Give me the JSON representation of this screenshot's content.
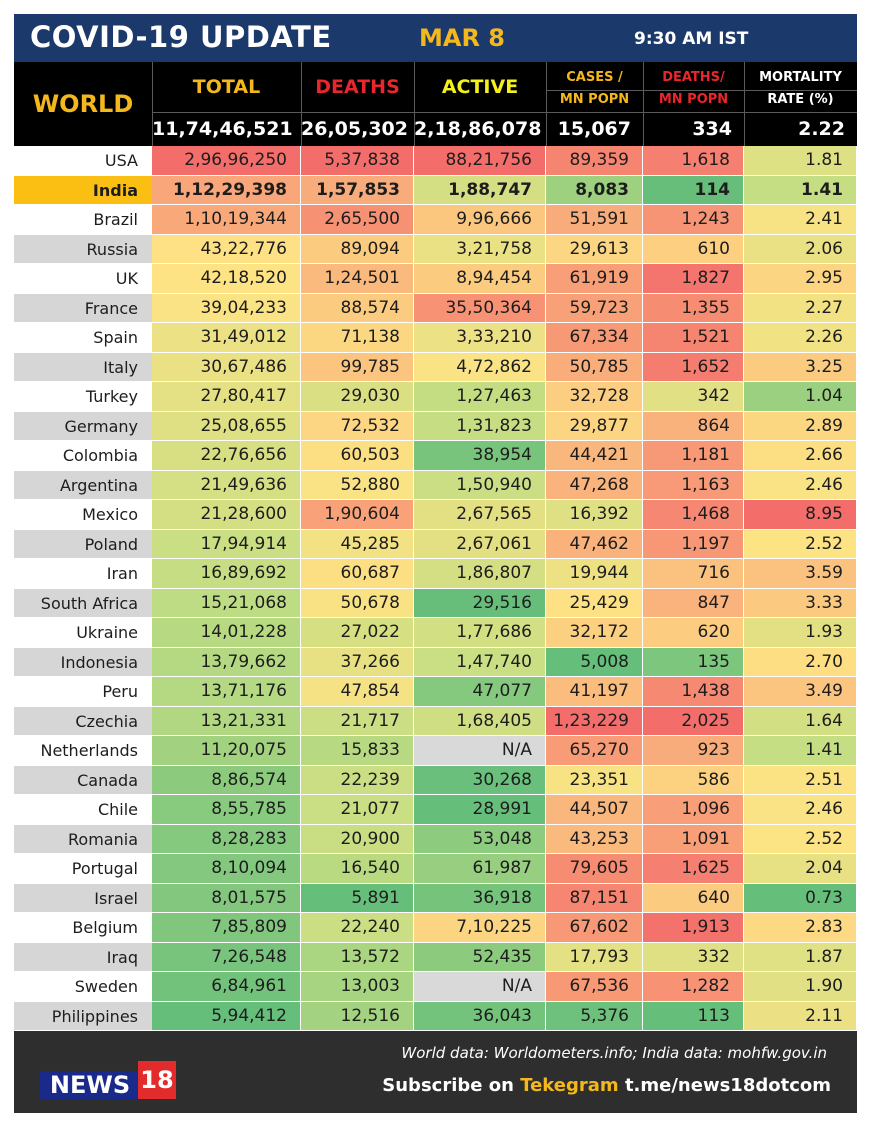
{
  "header": {
    "title": "COVID-19 UPDATE",
    "date": "MAR 8",
    "time": "9:30 AM IST"
  },
  "table": {
    "region_label": "WORLD",
    "columns": {
      "total": "TOTAL",
      "deaths": "DEATHS",
      "active": "ACTIVE",
      "cases_line1": "CASES /",
      "cases_line2": "MN POPN",
      "deaths_line1": "DEATHS/",
      "deaths_line2": "MN POPN",
      "mortality_line1": "MORTALITY",
      "mortality_line2": "RATE (%)"
    },
    "world_totals": {
      "total": "11,74,46,521",
      "deaths": "26,05,302",
      "active": "2,18,86,078",
      "cases_mn": "15,067",
      "deaths_mn": "334",
      "mortality": "2.22"
    },
    "rows": [
      {
        "country": "USA",
        "total": "2,96,96,250",
        "deaths": "5,37,838",
        "active": "88,21,756",
        "cases_mn": "89,359",
        "deaths_mn": "1,618",
        "mortality": "1.81"
      },
      {
        "country": "India",
        "total": "1,12,29,398",
        "deaths": "1,57,853",
        "active": "1,88,747",
        "cases_mn": "8,083",
        "deaths_mn": "114",
        "mortality": "1.41"
      },
      {
        "country": "Brazil",
        "total": "1,10,19,344",
        "deaths": "2,65,500",
        "active": "9,96,666",
        "cases_mn": "51,591",
        "deaths_mn": "1,243",
        "mortality": "2.41"
      },
      {
        "country": "Russia",
        "total": "43,22,776",
        "deaths": "89,094",
        "active": "3,21,758",
        "cases_mn": "29,613",
        "deaths_mn": "610",
        "mortality": "2.06"
      },
      {
        "country": "UK",
        "total": "42,18,520",
        "deaths": "1,24,501",
        "active": "8,94,454",
        "cases_mn": "61,919",
        "deaths_mn": "1,827",
        "mortality": "2.95"
      },
      {
        "country": "France",
        "total": "39,04,233",
        "deaths": "88,574",
        "active": "35,50,364",
        "cases_mn": "59,723",
        "deaths_mn": "1,355",
        "mortality": "2.27"
      },
      {
        "country": "Spain",
        "total": "31,49,012",
        "deaths": "71,138",
        "active": "3,33,210",
        "cases_mn": "67,334",
        "deaths_mn": "1,521",
        "mortality": "2.26"
      },
      {
        "country": "Italy",
        "total": "30,67,486",
        "deaths": "99,785",
        "active": "4,72,862",
        "cases_mn": "50,785",
        "deaths_mn": "1,652",
        "mortality": "3.25"
      },
      {
        "country": "Turkey",
        "total": "27,80,417",
        "deaths": "29,030",
        "active": "1,27,463",
        "cases_mn": "32,728",
        "deaths_mn": "342",
        "mortality": "1.04"
      },
      {
        "country": "Germany",
        "total": "25,08,655",
        "deaths": "72,532",
        "active": "1,31,823",
        "cases_mn": "29,877",
        "deaths_mn": "864",
        "mortality": "2.89"
      },
      {
        "country": "Colombia",
        "total": "22,76,656",
        "deaths": "60,503",
        "active": "38,954",
        "cases_mn": "44,421",
        "deaths_mn": "1,181",
        "mortality": "2.66"
      },
      {
        "country": "Argentina",
        "total": "21,49,636",
        "deaths": "52,880",
        "active": "1,50,940",
        "cases_mn": "47,268",
        "deaths_mn": "1,163",
        "mortality": "2.46"
      },
      {
        "country": "Mexico",
        "total": "21,28,600",
        "deaths": "1,90,604",
        "active": "2,67,565",
        "cases_mn": "16,392",
        "deaths_mn": "1,468",
        "mortality": "8.95"
      },
      {
        "country": "Poland",
        "total": "17,94,914",
        "deaths": "45,285",
        "active": "2,67,061",
        "cases_mn": "47,462",
        "deaths_mn": "1,197",
        "mortality": "2.52"
      },
      {
        "country": "Iran",
        "total": "16,89,692",
        "deaths": "60,687",
        "active": "1,86,807",
        "cases_mn": "19,944",
        "deaths_mn": "716",
        "mortality": "3.59"
      },
      {
        "country": "South Africa",
        "total": "15,21,068",
        "deaths": "50,678",
        "active": "29,516",
        "cases_mn": "25,429",
        "deaths_mn": "847",
        "mortality": "3.33"
      },
      {
        "country": "Ukraine",
        "total": "14,01,228",
        "deaths": "27,022",
        "active": "1,77,686",
        "cases_mn": "32,172",
        "deaths_mn": "620",
        "mortality": "1.93"
      },
      {
        "country": "Indonesia",
        "total": "13,79,662",
        "deaths": "37,266",
        "active": "1,47,740",
        "cases_mn": "5,008",
        "deaths_mn": "135",
        "mortality": "2.70"
      },
      {
        "country": "Peru",
        "total": "13,71,176",
        "deaths": "47,854",
        "active": "47,077",
        "cases_mn": "41,197",
        "deaths_mn": "1,438",
        "mortality": "3.49"
      },
      {
        "country": "Czechia",
        "total": "13,21,331",
        "deaths": "21,717",
        "active": "1,68,405",
        "cases_mn": "1,23,229",
        "deaths_mn": "2,025",
        "mortality": "1.64"
      },
      {
        "country": "Netherlands",
        "total": "11,20,075",
        "deaths": "15,833",
        "active": "N/A",
        "cases_mn": "65,270",
        "deaths_mn": "923",
        "mortality": "1.41"
      },
      {
        "country": "Canada",
        "total": "8,86,574",
        "deaths": "22,239",
        "active": "30,268",
        "cases_mn": "23,351",
        "deaths_mn": "586",
        "mortality": "2.51"
      },
      {
        "country": "Chile",
        "total": "8,55,785",
        "deaths": "21,077",
        "active": "28,991",
        "cases_mn": "44,507",
        "deaths_mn": "1,096",
        "mortality": "2.46"
      },
      {
        "country": "Romania",
        "total": "8,28,283",
        "deaths": "20,900",
        "active": "53,048",
        "cases_mn": "43,253",
        "deaths_mn": "1,091",
        "mortality": "2.52"
      },
      {
        "country": "Portugal",
        "total": "8,10,094",
        "deaths": "16,540",
        "active": "61,987",
        "cases_mn": "79,605",
        "deaths_mn": "1,625",
        "mortality": "2.04"
      },
      {
        "country": "Israel",
        "total": "8,01,575",
        "deaths": "5,891",
        "active": "36,918",
        "cases_mn": "87,151",
        "deaths_mn": "640",
        "mortality": "0.73"
      },
      {
        "country": "Belgium",
        "total": "7,85,809",
        "deaths": "22,240",
        "active": "7,10,225",
        "cases_mn": "67,602",
        "deaths_mn": "1,913",
        "mortality": "2.83"
      },
      {
        "country": "Iraq",
        "total": "7,26,548",
        "deaths": "13,572",
        "active": "52,435",
        "cases_mn": "17,793",
        "deaths_mn": "332",
        "mortality": "1.87"
      },
      {
        "country": "Sweden",
        "total": "6,84,961",
        "deaths": "13,003",
        "active": "N/A",
        "cases_mn": "67,536",
        "deaths_mn": "1,282",
        "mortality": "1.90"
      },
      {
        "country": "Philippines",
        "total": "5,94,412",
        "deaths": "12,516",
        "active": "36,043",
        "cases_mn": "5,376",
        "deaths_mn": "113",
        "mortality": "2.11"
      }
    ],
    "highlight_country": "India"
  },
  "footer": {
    "logo_text": "NEWS",
    "logo_number": "18",
    "source": "World data: Worldometers.info; India data: mohfw.gov.in",
    "subscribe_prefix": "Subscribe on",
    "subscribe_brand": "Tekegram",
    "subscribe_link": "t.me/news18dotcom"
  },
  "colors": {
    "banner": "#1b3a6b",
    "accent_yellow": "#f4b81c",
    "deaths_red": "#e8262b",
    "highlight_row": "#fbbf14",
    "heat_red": "#f36d6b",
    "heat_orange": "#f9a77a",
    "heat_yellow": "#fde384",
    "heat_lightgreen": "#c2dd83",
    "heat_green": "#66be7b",
    "na_gray": "#d9d9d9"
  }
}
